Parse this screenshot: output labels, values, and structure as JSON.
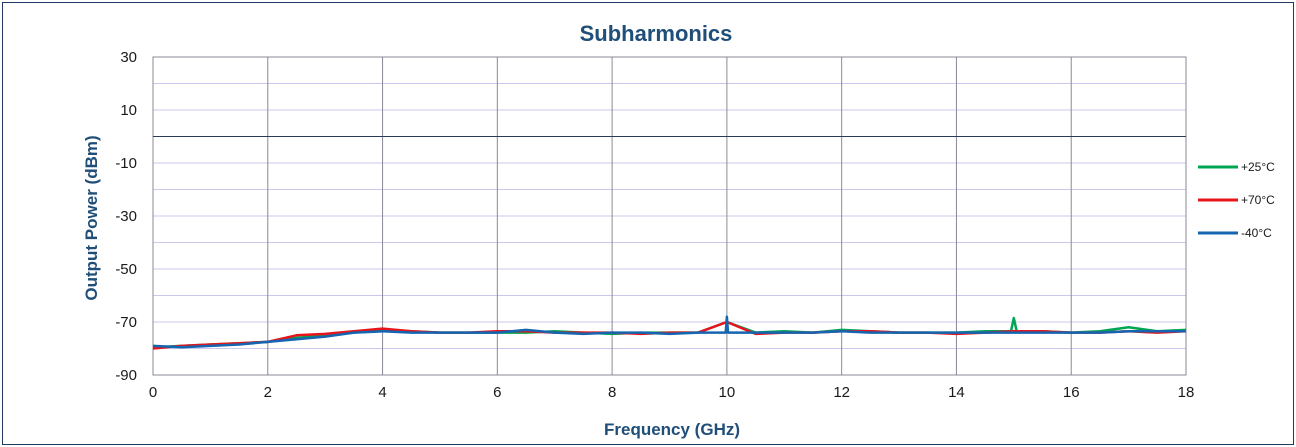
{
  "chart_data": {
    "type": "line",
    "title": "Subharmonics",
    "xlabel": "Frequency (GHz)",
    "ylabel": "Output Power (dBm)",
    "xlim": [
      0,
      18
    ],
    "ylim": [
      -90,
      30
    ],
    "x_ticks": [
      "0",
      "2",
      "4",
      "6",
      "8",
      "10",
      "12",
      "14",
      "16",
      "18"
    ],
    "y_ticks": [
      "30",
      "10",
      "-10",
      "-30",
      "-50",
      "-70",
      "-90"
    ],
    "reference_line_y": 0,
    "grid": true,
    "legend_position": "right",
    "series": [
      {
        "name": "+25°C",
        "color": "#00a651",
        "x": [
          0,
          0.5,
          1,
          1.5,
          2,
          2.5,
          3,
          3.5,
          4,
          4.5,
          5,
          5.5,
          6,
          6.5,
          7,
          7.5,
          8,
          8.5,
          9,
          9.5,
          10,
          10.5,
          11,
          11.5,
          12,
          12.5,
          13,
          13.5,
          14,
          14.5,
          14.95,
          15,
          15.05,
          15.5,
          16,
          16.5,
          17,
          17.5,
          18
        ],
        "y": [
          -79.5,
          -79,
          -78.5,
          -78,
          -77.5,
          -76,
          -75,
          -74,
          -73,
          -73.5,
          -74,
          -74,
          -74,
          -74,
          -73.5,
          -74,
          -74.5,
          -74,
          -74,
          -74,
          -70,
          -74,
          -73.5,
          -74,
          -73,
          -73.5,
          -74,
          -74,
          -74,
          -73.5,
          -73.5,
          -68.5,
          -73.5,
          -73.5,
          -74,
          -73.5,
          -72,
          -73.5,
          -73
        ]
      },
      {
        "name": "+70°C",
        "color": "#e8141b",
        "x": [
          0,
          0.5,
          1,
          1.5,
          2,
          2.5,
          3,
          3.5,
          4,
          4.5,
          5,
          5.5,
          6,
          6.5,
          7,
          7.5,
          8,
          8.5,
          9,
          9.5,
          10,
          10.5,
          11,
          11.5,
          12,
          12.5,
          13,
          13.5,
          14,
          14.5,
          15,
          15.5,
          16,
          16.5,
          17,
          17.5,
          18
        ],
        "y": [
          -80,
          -79,
          -78.5,
          -78,
          -77.5,
          -75,
          -74.5,
          -73.5,
          -72.5,
          -73.5,
          -74,
          -74,
          -73.5,
          -73.5,
          -74,
          -74,
          -74,
          -74.5,
          -74,
          -74,
          -70,
          -74.5,
          -74,
          -74,
          -73.5,
          -73.5,
          -74,
          -74,
          -74.5,
          -74,
          -73.5,
          -73.5,
          -74,
          -74,
          -73.5,
          -74,
          -73.5
        ]
      },
      {
        "name": "-40°C",
        "color": "#1565b0",
        "x": [
          0,
          0.5,
          1,
          1.5,
          2,
          2.5,
          3,
          3.5,
          4,
          4.5,
          5,
          5.5,
          6,
          6.5,
          7,
          7.5,
          8,
          8.5,
          9,
          9.5,
          9.98,
          10,
          10.02,
          10.5,
          11,
          11.5,
          12,
          12.5,
          13,
          13.5,
          14,
          14.5,
          15,
          15.5,
          16,
          16.5,
          17,
          17.5,
          18
        ],
        "y": [
          -79,
          -79.5,
          -79,
          -78.5,
          -77.5,
          -76.5,
          -75.5,
          -74,
          -73.5,
          -74,
          -74,
          -74,
          -74,
          -73,
          -74,
          -74.5,
          -74,
          -74,
          -74.5,
          -74,
          -74,
          -68,
          -74,
          -74,
          -74,
          -74,
          -73.5,
          -74,
          -74,
          -74,
          -74,
          -74,
          -74,
          -74,
          -74,
          -74,
          -73.5,
          -73.5,
          -73.5
        ]
      }
    ]
  }
}
